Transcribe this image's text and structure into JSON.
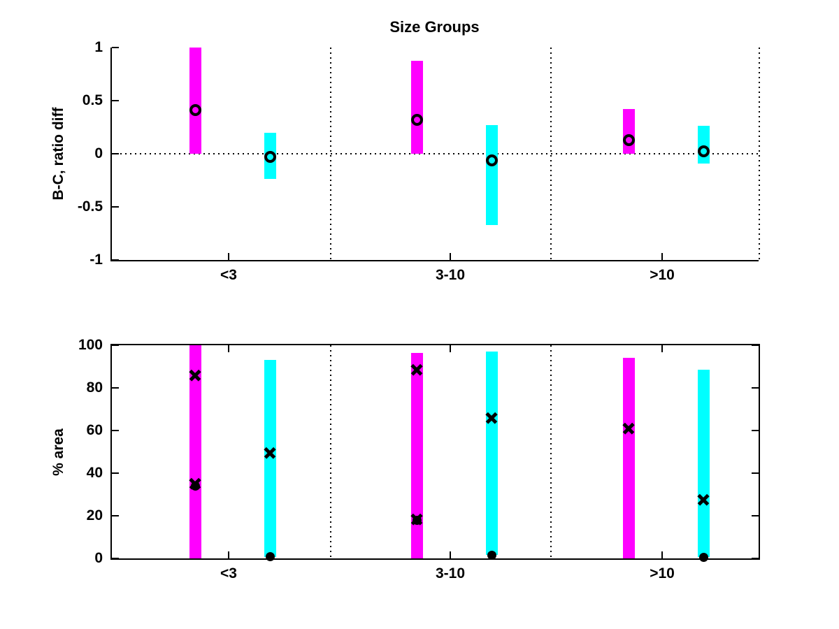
{
  "figure": {
    "background_color": "#ffffff",
    "axis_color": "#000000",
    "marker_color": "#000000"
  },
  "chart_data": [
    {
      "type": "bar",
      "variant": "floating-range-bars-with-open-circle-markers",
      "title": "Size Groups",
      "ylabel": "B-C, ratio diff",
      "xlabel": "",
      "categories": [
        "<3",
        "3-10",
        ">10"
      ],
      "ylim": [
        -1,
        1
      ],
      "yticks": [
        1,
        0.5,
        0,
        -0.5,
        -1
      ],
      "ytick_labels": [
        "1",
        "0.5",
        "0",
        "-0.5",
        "-1"
      ],
      "zero_line": "dotted",
      "group_separators": "dotted-vertical",
      "box": false,
      "legend": "none",
      "series": [
        {
          "name": "magenta",
          "color": "#ff00ff",
          "bar_ranges": [
            [
              0,
              1.0
            ],
            [
              0,
              0.875
            ],
            [
              0,
              0.42
            ]
          ],
          "circle_markers": [
            0.41,
            0.32,
            0.13
          ]
        },
        {
          "name": "cyan",
          "color": "#00ffff",
          "bar_ranges": [
            [
              -0.24,
              0.2
            ],
            [
              -0.67,
              0.27
            ],
            [
              -0.09,
              0.26
            ]
          ],
          "circle_markers": [
            -0.03,
            -0.06,
            0.02
          ]
        }
      ]
    },
    {
      "type": "bar",
      "variant": "floating-range-bars-with-x-and-dot-markers",
      "title": "",
      "ylabel": "% area",
      "xlabel": "",
      "categories": [
        "<3",
        "3-10",
        ">10"
      ],
      "ylim": [
        0,
        100
      ],
      "yticks": [
        100,
        80,
        60,
        40,
        20,
        0
      ],
      "ytick_labels": [
        "100",
        "80",
        "60",
        "40",
        "20",
        "0"
      ],
      "zero_line": "none",
      "group_separators": "dotted-vertical",
      "box": true,
      "legend": "none",
      "series": [
        {
          "name": "magenta",
          "color": "#ff00ff",
          "bar_ranges": [
            [
              0,
              100
            ],
            [
              0,
              96.5
            ],
            [
              0,
              94
            ]
          ],
          "x_markers": [
            [
              86,
              35
            ],
            [
              88.5,
              18.5
            ],
            [
              61
            ]
          ],
          "dot_markers": [
            [
              34
            ],
            [
              18
            ],
            []
          ]
        },
        {
          "name": "cyan",
          "color": "#00ffff",
          "bar_ranges": [
            [
              0.5,
              93
            ],
            [
              1.5,
              97
            ],
            [
              0.5,
              88.5
            ]
          ],
          "x_markers": [
            [
              49.5
            ],
            [
              66
            ],
            [
              27.5
            ]
          ],
          "dot_markers": [
            [
              0.7
            ],
            [
              1.5
            ],
            [
              0.5
            ]
          ]
        }
      ]
    }
  ]
}
